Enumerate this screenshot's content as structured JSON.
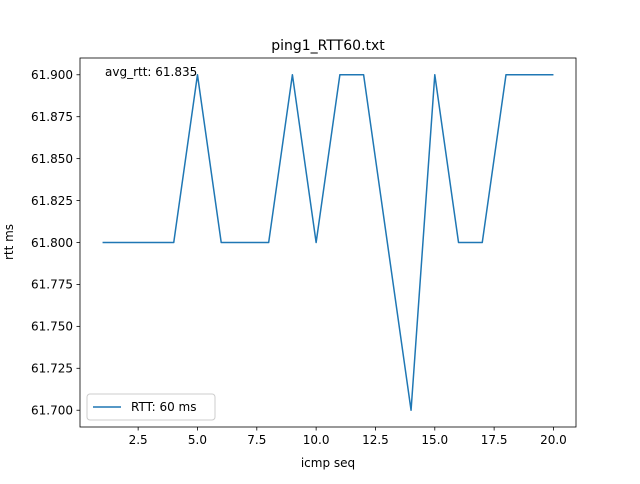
{
  "chart_data": {
    "type": "line",
    "title": "ping1_RTT60.txt",
    "xlabel": "icmp seq",
    "ylabel": "rtt ms",
    "annotation": "avg_rtt: 61.835",
    "xlim": [
      0.05,
      20.95
    ],
    "ylim": [
      61.69,
      61.91
    ],
    "x_ticks": [
      2.5,
      5.0,
      7.5,
      10.0,
      12.5,
      15.0,
      17.5,
      20.0
    ],
    "x_tick_labels": [
      "2.5",
      "5.0",
      "7.5",
      "10.0",
      "12.5",
      "15.0",
      "17.5",
      "20.0"
    ],
    "y_ticks": [
      61.7,
      61.725,
      61.75,
      61.775,
      61.8,
      61.825,
      61.85,
      61.875,
      61.9
    ],
    "y_tick_labels": [
      "61.700",
      "61.725",
      "61.750",
      "61.775",
      "61.800",
      "61.825",
      "61.850",
      "61.875",
      "61.900"
    ],
    "grid": false,
    "legend_position": "lower-left",
    "series": [
      {
        "name": "RTT: 60 ms",
        "color": "#1f77b4",
        "x": [
          1,
          2,
          3,
          4,
          5,
          6,
          7,
          8,
          9,
          10,
          11,
          12,
          13,
          14,
          15,
          16,
          17,
          18,
          19,
          20
        ],
        "y": [
          61.8,
          61.8,
          61.8,
          61.8,
          61.9,
          61.8,
          61.8,
          61.8,
          61.9,
          61.8,
          61.9,
          61.9,
          61.8,
          61.7,
          61.9,
          61.8,
          61.8,
          61.9,
          61.9,
          61.9
        ]
      }
    ]
  }
}
